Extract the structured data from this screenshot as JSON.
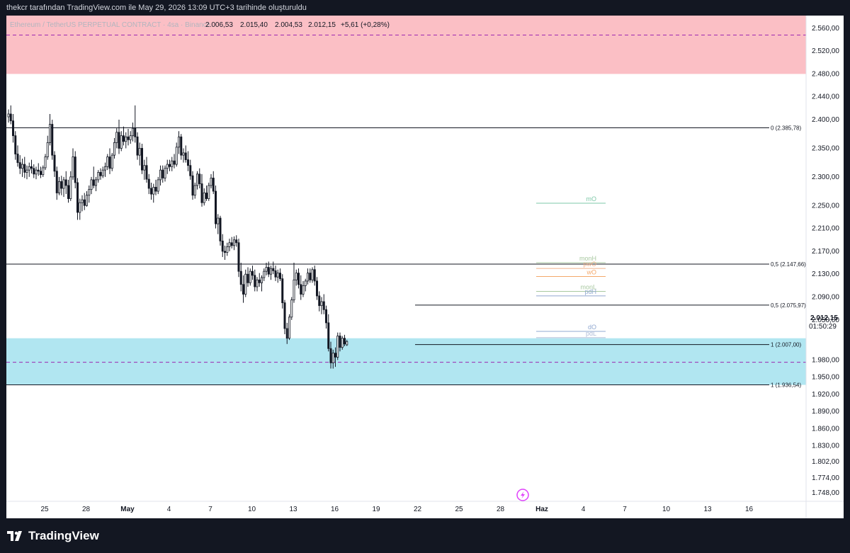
{
  "header": {
    "caption": "thekcr tarafından TradingView.com ile May 29, 2026 13:09 UTC+3 tarihinde oluşturuldu"
  },
  "footer": {
    "brand": "TradingView"
  },
  "legend": {
    "symbol": "Ethereum / TetherUS PERPETUAL CONTRACT · 4sa · Binance",
    "open": "2.006,53",
    "high": "2.015,40",
    "low": "2.004,53",
    "close": "2.012,15",
    "change": "+5,61 (+0,28%)"
  },
  "colors": {
    "background": "#ffffff",
    "frame": "#131722",
    "candle": "#131722",
    "supply_zone": "#fbbfc5",
    "demand_zone": "#b1e6f1",
    "dashed_line": "#9c27b0",
    "level_line": "#131722",
    "legend_text": "#131722",
    "legend_muted": "#b2b5be"
  },
  "price_axis": {
    "ticks": [
      "2.560,00",
      "2.520,00",
      "2.480,00",
      "2.440,00",
      "2.400,00",
      "2.350,00",
      "2.300,00",
      "2.250,00",
      "2.210,00",
      "2.170,00",
      "2.130,00",
      "2.090,00",
      "2.050,00",
      "1.980,00",
      "1.950,00",
      "1.920,00",
      "1.890,00",
      "1.860,00",
      "1.830,00",
      "1.802,00",
      "1.774,00",
      "1.748,00"
    ],
    "last_price": "2.012,15",
    "countdown": "01:50:29"
  },
  "time_axis": {
    "ticks": [
      "25",
      "28",
      "May",
      "4",
      "7",
      "10",
      "13",
      "16",
      "19",
      "22",
      "25",
      "28",
      "Haz",
      "4",
      "7",
      "10",
      "13",
      "16"
    ]
  },
  "fib_levels": [
    {
      "label": "0 (2.385,78)",
      "price": 2385.78
    },
    {
      "label": "0,5 (2.147,66)",
      "price": 2147.66
    },
    {
      "label": "0,5 (2.075,97)",
      "price": 2075.97
    },
    {
      "label": "1 (2.007,00)",
      "price": 2007.0
    },
    {
      "label": "1 (1.936,54)",
      "price": 1936.54
    }
  ],
  "key_levels": [
    {
      "label": "mO",
      "color": "#7ec8a8"
    },
    {
      "label": "monH",
      "color": "#a8c8a0"
    },
    {
      "label": "pwO",
      "color": "#f0b08a"
    },
    {
      "label": "wO",
      "color": "#f4a86a"
    },
    {
      "label": "monL",
      "color": "#a8c8a0"
    },
    {
      "label": "pdH",
      "color": "#90a8d0"
    },
    {
      "label": "dO",
      "color": "#90a8d0"
    },
    {
      "label": "pdL",
      "color": "#b0bcd8"
    }
  ],
  "chart_data": {
    "type": "candlestick",
    "title": "Ethereum / TetherUS PERPETUAL CONTRACT · 4sa · Binance",
    "timeframe": "4sa",
    "ylim": [
      1733,
      2582
    ],
    "zones": [
      {
        "name": "supply",
        "from": 2480,
        "to": 2582
      },
      {
        "name": "demand",
        "from": 1936.54,
        "to": 2018
      }
    ],
    "dashed_levels": [
      2548,
      1976
    ],
    "key_level_prices": [
      2254,
      2150,
      2140,
      2126,
      2100,
      2092,
      2030,
      2019,
      1966
    ],
    "bars_per_day": 6,
    "first_bar_date": "Apr 22",
    "last_bar_date": "May 29",
    "ohlc": [
      [
        2405,
        2418,
        2395,
        2410
      ],
      [
        2410,
        2425,
        2392,
        2398
      ],
      [
        2398,
        2410,
        2360,
        2372
      ],
      [
        2372,
        2380,
        2330,
        2340
      ],
      [
        2340,
        2355,
        2318,
        2325
      ],
      [
        2325,
        2338,
        2305,
        2315
      ],
      [
        2315,
        2332,
        2300,
        2322
      ],
      [
        2322,
        2335,
        2298,
        2308
      ],
      [
        2308,
        2320,
        2296,
        2312
      ],
      [
        2312,
        2325,
        2300,
        2318
      ],
      [
        2318,
        2330,
        2306,
        2315
      ],
      [
        2315,
        2322,
        2298,
        2305
      ],
      [
        2305,
        2318,
        2296,
        2312
      ],
      [
        2312,
        2324,
        2302,
        2310
      ],
      [
        2310,
        2318,
        2298,
        2304
      ],
      [
        2304,
        2320,
        2300,
        2316
      ],
      [
        2316,
        2340,
        2312,
        2335
      ],
      [
        2335,
        2372,
        2330,
        2360
      ],
      [
        2360,
        2410,
        2355,
        2392
      ],
      [
        2392,
        2400,
        2330,
        2338
      ],
      [
        2338,
        2345,
        2300,
        2310
      ],
      [
        2310,
        2318,
        2260,
        2272
      ],
      [
        2272,
        2300,
        2268,
        2292
      ],
      [
        2292,
        2302,
        2268,
        2280
      ],
      [
        2280,
        2300,
        2265,
        2295
      ],
      [
        2295,
        2310,
        2270,
        2285
      ],
      [
        2285,
        2295,
        2255,
        2262
      ],
      [
        2262,
        2310,
        2258,
        2300
      ],
      [
        2300,
        2350,
        2295,
        2335
      ],
      [
        2335,
        2345,
        2280,
        2290
      ],
      [
        2290,
        2298,
        2225,
        2238
      ],
      [
        2238,
        2262,
        2225,
        2255
      ],
      [
        2255,
        2268,
        2240,
        2260
      ],
      [
        2260,
        2272,
        2242,
        2250
      ],
      [
        2250,
        2275,
        2248,
        2268
      ],
      [
        2268,
        2285,
        2255,
        2278
      ],
      [
        2278,
        2300,
        2270,
        2295
      ],
      [
        2295,
        2318,
        2280,
        2285
      ],
      [
        2285,
        2300,
        2275,
        2295
      ],
      [
        2295,
        2312,
        2290,
        2308
      ],
      [
        2308,
        2315,
        2295,
        2302
      ],
      [
        2302,
        2318,
        2298,
        2312
      ],
      [
        2312,
        2325,
        2300,
        2318
      ],
      [
        2318,
        2340,
        2312,
        2335
      ],
      [
        2335,
        2350,
        2305,
        2315
      ],
      [
        2315,
        2342,
        2310,
        2338
      ],
      [
        2338,
        2368,
        2332,
        2360
      ],
      [
        2360,
        2385,
        2350,
        2378
      ],
      [
        2378,
        2400,
        2340,
        2350
      ],
      [
        2350,
        2380,
        2345,
        2372
      ],
      [
        2372,
        2388,
        2355,
        2362
      ],
      [
        2362,
        2378,
        2350,
        2370
      ],
      [
        2370,
        2384,
        2355,
        2365
      ],
      [
        2365,
        2380,
        2358,
        2372
      ],
      [
        2372,
        2395,
        2362,
        2385
      ],
      [
        2385,
        2425,
        2360,
        2370
      ],
      [
        2370,
        2378,
        2330,
        2338
      ],
      [
        2338,
        2360,
        2320,
        2350
      ],
      [
        2350,
        2358,
        2305,
        2312
      ],
      [
        2312,
        2330,
        2295,
        2320
      ],
      [
        2320,
        2335,
        2290,
        2296
      ],
      [
        2296,
        2305,
        2270,
        2280
      ],
      [
        2280,
        2290,
        2260,
        2270
      ],
      [
        2270,
        2288,
        2255,
        2282
      ],
      [
        2282,
        2295,
        2268,
        2275
      ],
      [
        2275,
        2300,
        2270,
        2295
      ],
      [
        2295,
        2320,
        2285,
        2312
      ],
      [
        2312,
        2320,
        2290,
        2298
      ],
      [
        2298,
        2320,
        2292,
        2315
      ],
      [
        2315,
        2330,
        2305,
        2322
      ],
      [
        2322,
        2330,
        2310,
        2318
      ],
      [
        2318,
        2335,
        2310,
        2328
      ],
      [
        2328,
        2340,
        2315,
        2322
      ],
      [
        2322,
        2360,
        2318,
        2352
      ],
      [
        2352,
        2380,
        2340,
        2370
      ],
      [
        2370,
        2375,
        2330,
        2338
      ],
      [
        2338,
        2350,
        2325,
        2342
      ],
      [
        2342,
        2355,
        2325,
        2330
      ],
      [
        2330,
        2345,
        2310,
        2320
      ],
      [
        2320,
        2330,
        2295,
        2302
      ],
      [
        2302,
        2310,
        2260,
        2268
      ],
      [
        2268,
        2290,
        2262,
        2285
      ],
      [
        2285,
        2310,
        2278,
        2305
      ],
      [
        2305,
        2315,
        2280,
        2288
      ],
      [
        2288,
        2305,
        2248,
        2255
      ],
      [
        2255,
        2280,
        2250,
        2272
      ],
      [
        2272,
        2285,
        2258,
        2262
      ],
      [
        2262,
        2290,
        2258,
        2285
      ],
      [
        2285,
        2305,
        2280,
        2298
      ],
      [
        2298,
        2310,
        2270,
        2275
      ],
      [
        2275,
        2285,
        2210,
        2218
      ],
      [
        2218,
        2235,
        2200,
        2228
      ],
      [
        2228,
        2232,
        2180,
        2188
      ],
      [
        2188,
        2200,
        2160,
        2170
      ],
      [
        2170,
        2180,
        2155,
        2168
      ],
      [
        2168,
        2185,
        2162,
        2178
      ],
      [
        2178,
        2192,
        2170,
        2185
      ],
      [
        2185,
        2195,
        2175,
        2180
      ],
      [
        2180,
        2196,
        2172,
        2190
      ],
      [
        2190,
        2198,
        2178,
        2185
      ],
      [
        2185,
        2192,
        2125,
        2135
      ],
      [
        2135,
        2150,
        2100,
        2112
      ],
      [
        2112,
        2128,
        2080,
        2095
      ],
      [
        2095,
        2138,
        2090,
        2130
      ],
      [
        2130,
        2142,
        2108,
        2115
      ],
      [
        2115,
        2140,
        2110,
        2135
      ],
      [
        2135,
        2145,
        2120,
        2128
      ],
      [
        2128,
        2138,
        2100,
        2108
      ],
      [
        2108,
        2125,
        2100,
        2120
      ],
      [
        2120,
        2132,
        2108,
        2115
      ],
      [
        2115,
        2128,
        2100,
        2124
      ],
      [
        2124,
        2140,
        2118,
        2135
      ],
      [
        2135,
        2150,
        2128,
        2142
      ],
      [
        2142,
        2152,
        2125,
        2130
      ],
      [
        2130,
        2145,
        2120,
        2140
      ],
      [
        2140,
        2152,
        2130,
        2136
      ],
      [
        2136,
        2145,
        2118,
        2125
      ],
      [
        2125,
        2138,
        2115,
        2132
      ],
      [
        2132,
        2140,
        2118,
        2122
      ],
      [
        2122,
        2130,
        2070,
        2080
      ],
      [
        2080,
        2085,
        2025,
        2035
      ],
      [
        2035,
        2045,
        2008,
        2018
      ],
      [
        2018,
        2060,
        2015,
        2055
      ],
      [
        2055,
        2090,
        2050,
        2085
      ],
      [
        2085,
        2150,
        2080,
        2120
      ],
      [
        2120,
        2138,
        2110,
        2132
      ],
      [
        2132,
        2140,
        2105,
        2112
      ],
      [
        2112,
        2128,
        2085,
        2095
      ],
      [
        2095,
        2118,
        2090,
        2110
      ],
      [
        2110,
        2122,
        2100,
        2118
      ],
      [
        2118,
        2140,
        2112,
        2132
      ],
      [
        2132,
        2140,
        2115,
        2120
      ],
      [
        2120,
        2142,
        2115,
        2138
      ],
      [
        2138,
        2145,
        2110,
        2118
      ],
      [
        2118,
        2125,
        2085,
        2092
      ],
      [
        2092,
        2100,
        2065,
        2075
      ],
      [
        2075,
        2090,
        2060,
        2082
      ],
      [
        2082,
        2095,
        2060,
        2068
      ],
      [
        2068,
        2075,
        2035,
        2045
      ],
      [
        2045,
        2060,
        1995,
        2000
      ],
      [
        2000,
        2012,
        1965,
        1975
      ],
      [
        1975,
        1998,
        1965,
        1992
      ],
      [
        1992,
        2002,
        1968,
        1985
      ],
      [
        1985,
        2028,
        1980,
        2022
      ],
      [
        2022,
        2028,
        1995,
        2002
      ],
      [
        2002,
        2022,
        1998,
        2018
      ],
      [
        2018,
        2024,
        2004,
        2008
      ],
      [
        2006.53,
        2015.4,
        2004.53,
        2012.15
      ]
    ]
  }
}
